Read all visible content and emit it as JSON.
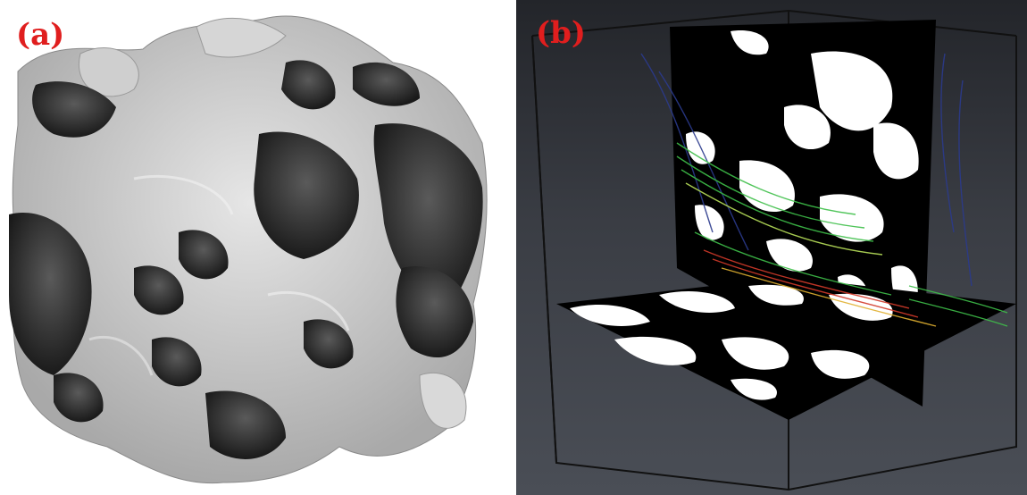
{
  "figure": {
    "panel_a": {
      "label": "(a)"
    },
    "panel_b": {
      "label": "(b)"
    },
    "colors": {
      "label_red": "#e01e1e",
      "solid_light": "#c8c8c8",
      "solid_dark": "#2a2a2a",
      "background_b": "#3a3d44",
      "pore_white": "#ffffff",
      "grain_black": "#000000",
      "streamline_blue": "#2b3a8c",
      "streamline_green": "#3fbf4a",
      "streamline_red": "#d23a2a"
    }
  }
}
